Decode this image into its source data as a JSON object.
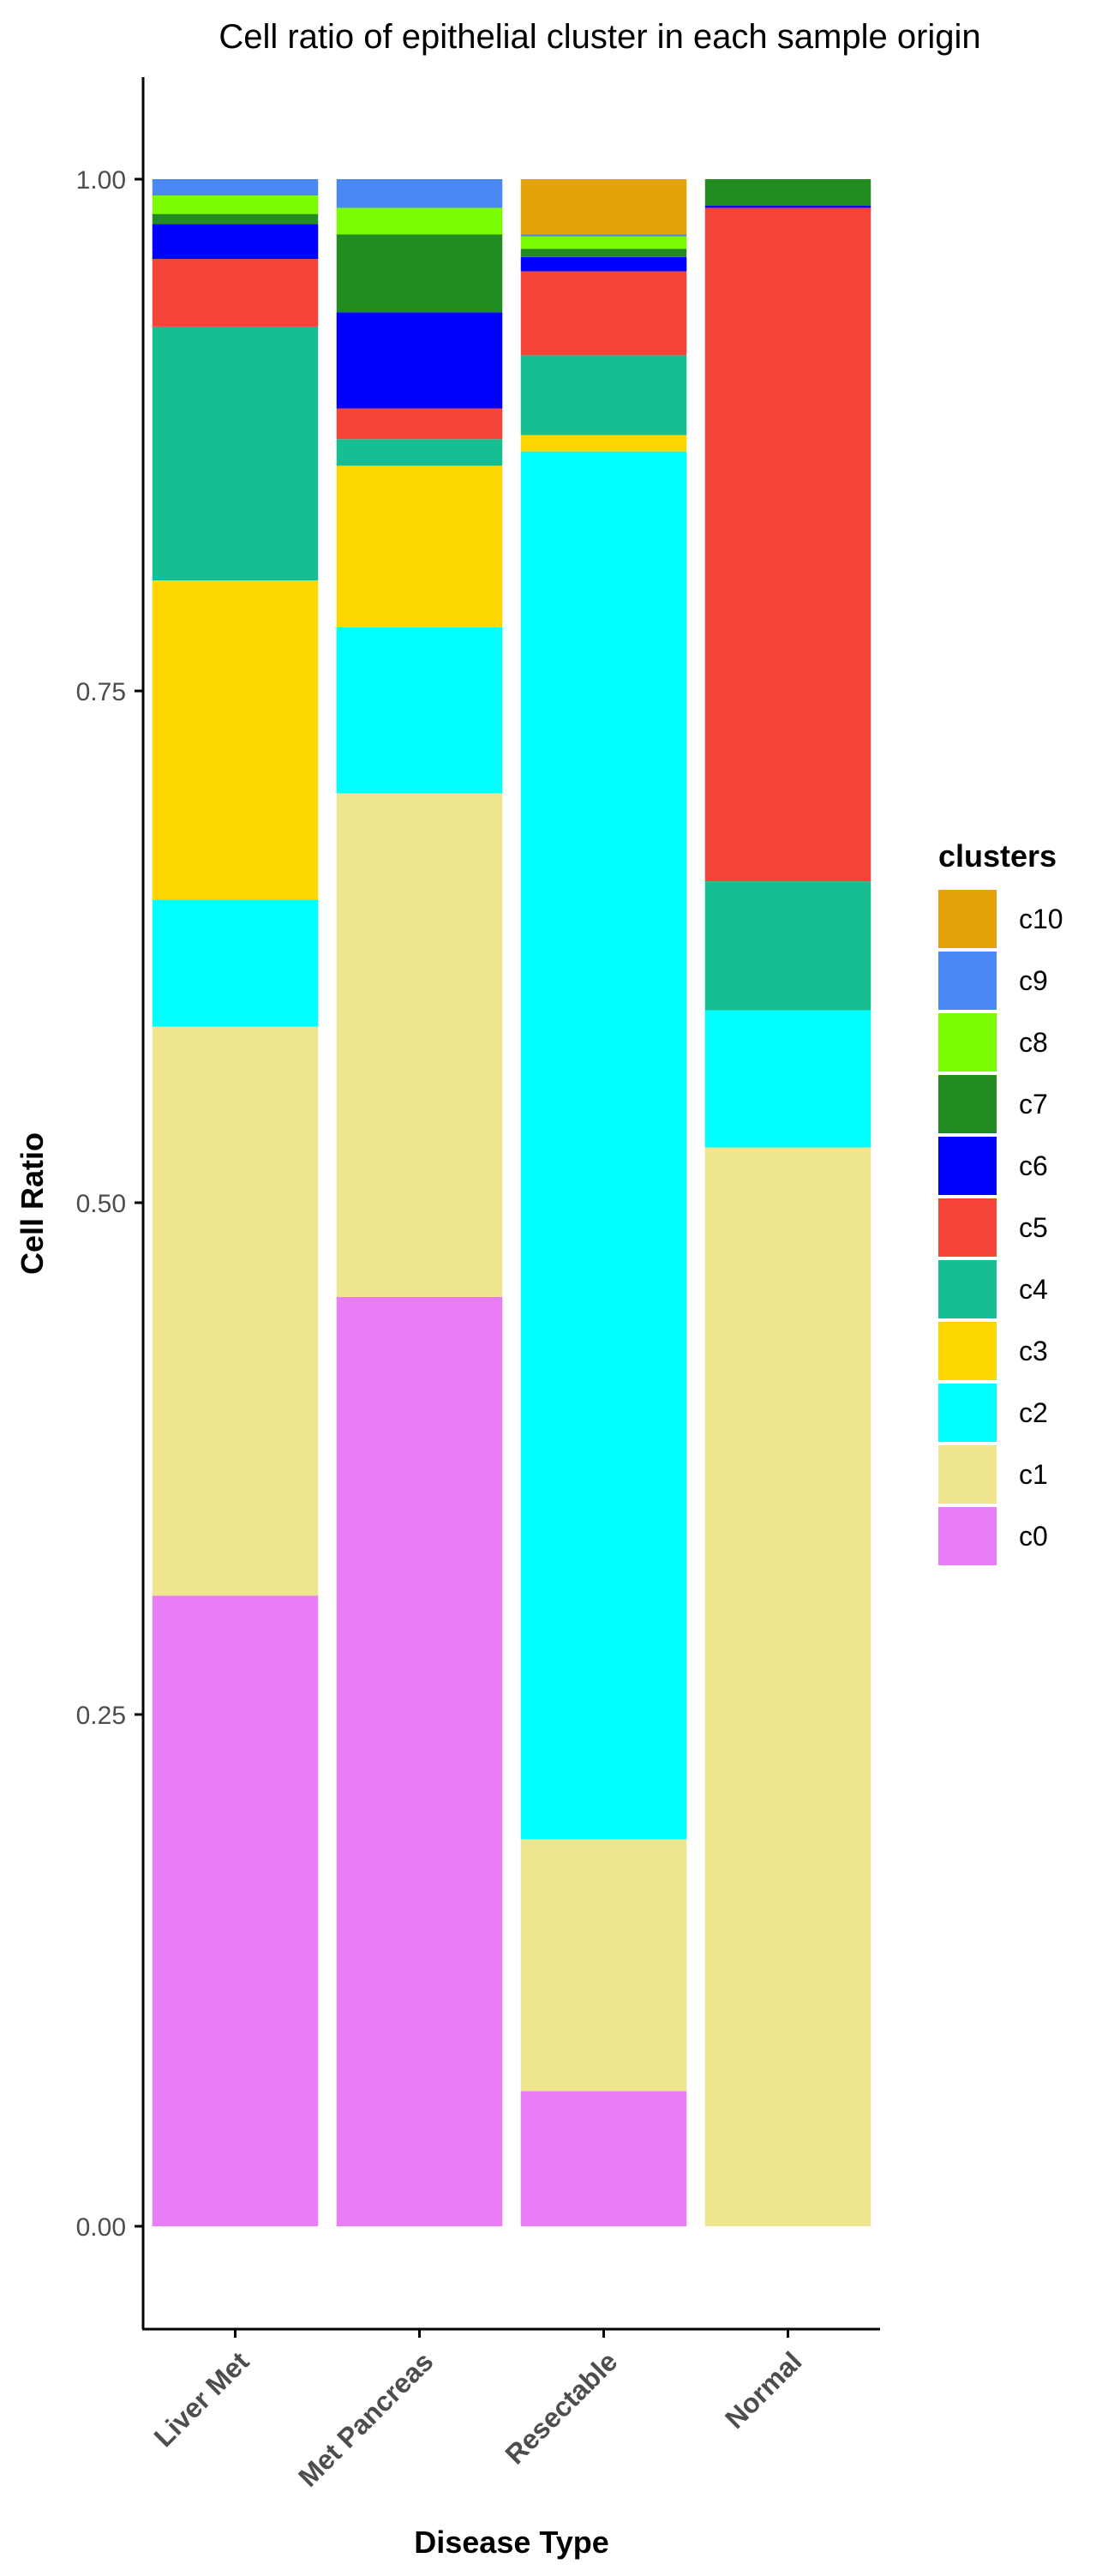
{
  "chart_data": {
    "type": "bar",
    "stacked": true,
    "normalized": true,
    "title": "Cell ratio of epithelial cluster in each sample origin",
    "xlabel": "Disease Type",
    "ylabel": "Cell Ratio",
    "ylim": [
      -0.05,
      1.05
    ],
    "yticks": [
      0.0,
      0.25,
      0.5,
      0.75,
      1.0
    ],
    "ytick_labels": [
      "0.00",
      "0.25",
      "0.50",
      "0.75",
      "1.00"
    ],
    "grid": false,
    "legend_title": "clusters",
    "legend_position": "right",
    "categories": [
      "Liver Met",
      "Met Pancreas",
      "Resectable",
      "Normal"
    ],
    "series": [
      {
        "name": "c0",
        "color": "#E87DF5",
        "values": [
          0.308,
          0.454,
          0.066,
          0.0
        ]
      },
      {
        "name": "c1",
        "color": "#EFE58F",
        "values": [
          0.278,
          0.246,
          0.123,
          0.527
        ]
      },
      {
        "name": "c2",
        "color": "#00FFFF",
        "values": [
          0.062,
          0.081,
          0.678,
          0.067
        ]
      },
      {
        "name": "c3",
        "color": "#FFD700",
        "values": [
          0.156,
          0.079,
          0.008,
          0.0
        ]
      },
      {
        "name": "c4",
        "color": "#17BE91",
        "values": [
          0.124,
          0.013,
          0.039,
          0.063
        ]
      },
      {
        "name": "c5",
        "color": "#F5443A",
        "values": [
          0.033,
          0.015,
          0.041,
          0.329
        ]
      },
      {
        "name": "c6",
        "color": "#0000FF",
        "values": [
          0.017,
          0.047,
          0.007,
          0.001
        ]
      },
      {
        "name": "c7",
        "color": "#228B22",
        "values": [
          0.005,
          0.038,
          0.004,
          0.013
        ]
      },
      {
        "name": "c8",
        "color": "#7CFC00",
        "values": [
          0.009,
          0.013,
          0.006,
          0.0
        ]
      },
      {
        "name": "c9",
        "color": "#4A89F3",
        "values": [
          0.008,
          0.014,
          0.001,
          0.0
        ]
      },
      {
        "name": "c10",
        "color": "#E6A20B",
        "values": [
          0.0,
          0.0,
          0.027,
          0.0
        ]
      }
    ]
  }
}
